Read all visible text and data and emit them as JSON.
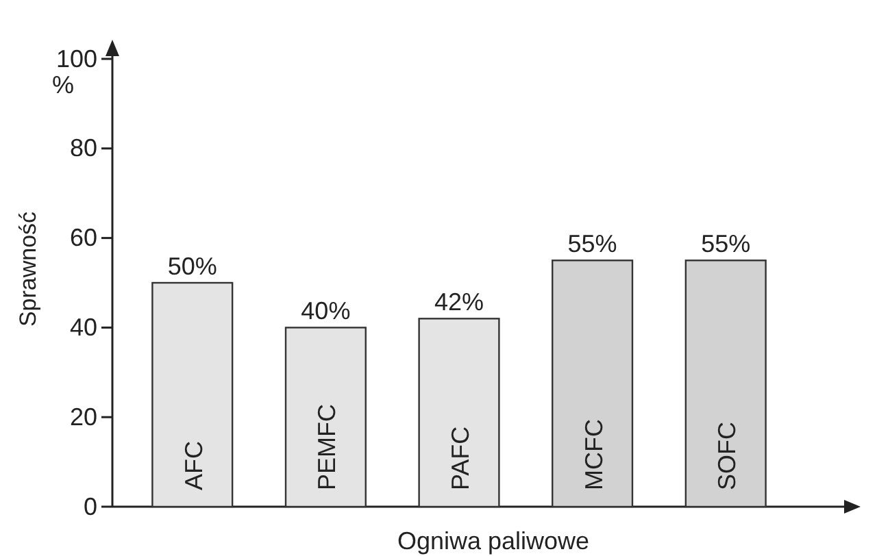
{
  "chart_data": {
    "type": "bar",
    "ylabel": "Sprawność",
    "xlabel": "Ogniwa paliwowe",
    "categories": [
      "AFC",
      "PEMFC",
      "PAFC",
      "MCFC",
      "SOFC"
    ],
    "values": [
      50,
      40,
      42,
      55,
      55
    ],
    "colors": [
      "#e4e4e4",
      "#e4e4e4",
      "#e4e4e4",
      "#d2d2d2",
      "#d2d2d2"
    ],
    "value_labels": [
      "50%",
      "40%",
      "42%",
      "55%",
      "55%"
    ],
    "ylim": [
      0,
      100
    ],
    "yticks": [
      0,
      20,
      40,
      60,
      80,
      100
    ],
    "annotations": [
      "%"
    ]
  }
}
